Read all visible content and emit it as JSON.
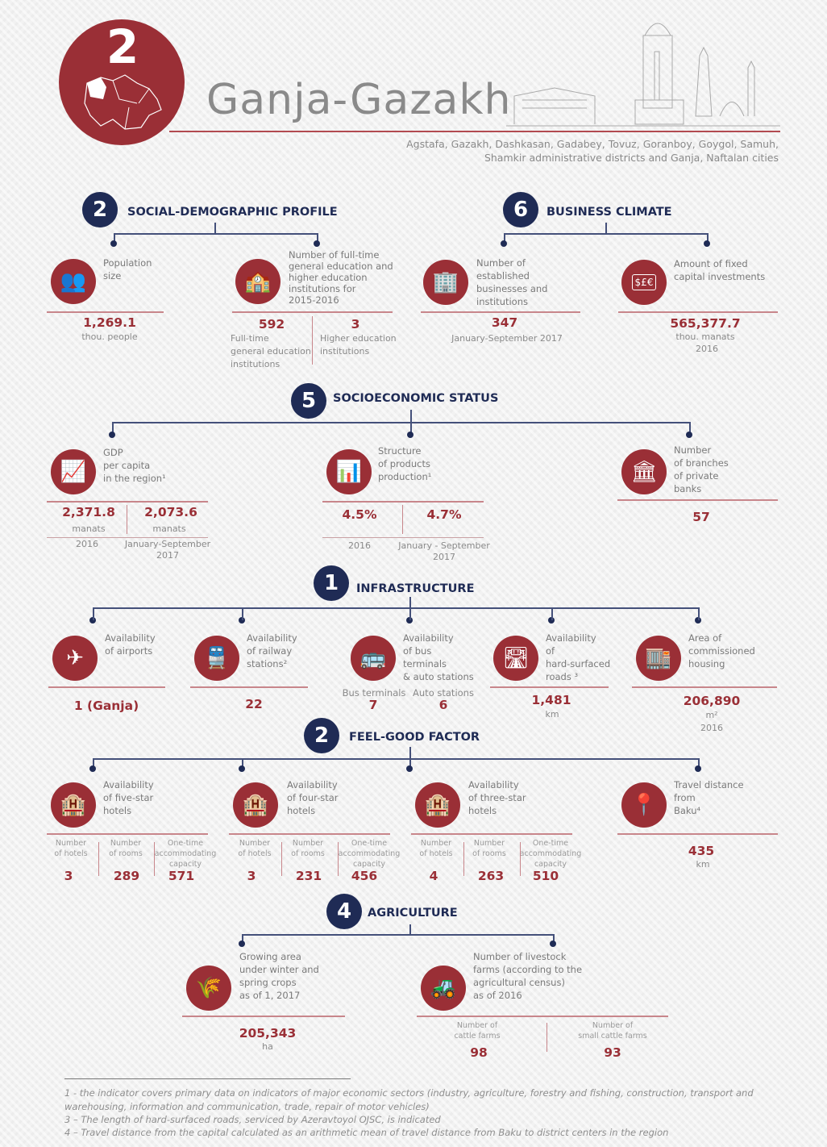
{
  "header": {
    "number": "2",
    "title": "Ganja-Gazakh",
    "subtitle_line1": "Agstafa, Gazakh, Dashkasan, Gadabey, Tovuz, Goranboy, Goygol, Samuh,",
    "subtitle_line2": "Shamkir administrative districts and Ganja, Naftalan cities"
  },
  "colors": {
    "accent": "#9a2f36",
    "navy": "#1f2b55"
  },
  "social": {
    "number": "2",
    "title": "SOCIAL-DEMOGRAPHIC PROFILE",
    "population": {
      "icon": "people-icon",
      "label": "Population\nsize",
      "value": "1,269.1",
      "unit": "thou. people"
    },
    "education": {
      "icon": "school-icon",
      "label": "Number of full-time\ngeneral education and\nhigher education\ninstitutions for\n2015-2016",
      "general_value": "592",
      "general_label": "Full-time\ngeneral education\ninstitutions",
      "higher_value": "3",
      "higher_label": "Higher education\ninstitutions"
    }
  },
  "business": {
    "number": "6",
    "title": "BUSINESS CLIMATE",
    "businesses": {
      "icon": "office-building-icon",
      "label": "Number of\nestablished\nbusinesses and\ninstitutions",
      "value": "347",
      "period": "January-September 2017"
    },
    "investments": {
      "icon": "money-case-icon",
      "icon_text": "$£€",
      "label": "Amount of fixed\ncapital investments",
      "value": "565,377.7",
      "unit": "thou. manats",
      "year": "2016"
    }
  },
  "socio": {
    "number": "5",
    "title": "SOCIOECONOMIC STATUS",
    "gdp": {
      "icon": "gdp-person-chart-icon",
      "label": "GDP\nper capita\nin the region¹",
      "value_2016": "2,371.8",
      "unit_2016": "manats",
      "period_2016": "2016",
      "value_2017": "2,073.6",
      "unit_2017": "manats",
      "period_2017": "January-September\n2017"
    },
    "structure": {
      "icon": "growth-chart-icon",
      "label": "Structure\nof products\nproduction¹",
      "value_2016": "4.5%",
      "period_2016": "2016",
      "value_2017": "4.7%",
      "period_2017": "January - September\n2017"
    },
    "banks": {
      "icon": "bank-icon",
      "label": "Number\nof branches\nof private\nbanks",
      "value": "57"
    }
  },
  "infra": {
    "number": "1",
    "title": "INFRASTRUCTURE",
    "airports": {
      "icon": "airplane-icon",
      "label": "Availability\nof airports",
      "value": "1 (Ganja)"
    },
    "railway": {
      "icon": "train-icon",
      "label": "Availability\nof railway\nstations²",
      "value": "22"
    },
    "bus": {
      "icon": "bus-icon",
      "label": "Availability\nof bus\nterminals\n& auto stations",
      "terminals_label": "Bus terminals",
      "terminals_value": "7",
      "stations_label": "Auto stations",
      "stations_value": "6"
    },
    "roads": {
      "icon": "road-icon",
      "label": "Availability\nof\nhard-surfaced\nroads ³",
      "value": "1,481",
      "unit": "km"
    },
    "housing": {
      "icon": "apartment-building-icon",
      "label": "Area of\ncommissioned\nhousing",
      "value": "206,890",
      "unit": "m²",
      "year": "2016"
    }
  },
  "feel": {
    "number": "2",
    "title": "FEEL-GOOD FACTOR",
    "col_hotels": "Number\nof hotels",
    "col_rooms": "Number\nof rooms",
    "col_capacity": "One-time\naccommodating\ncapacity",
    "hotels": [
      {
        "icon": "hotel-icon",
        "label": "Availability\nof five-star\nhotels",
        "hotels": "3",
        "rooms": "289",
        "capacity": "571"
      },
      {
        "icon": "hotel-icon",
        "label": "Availability\nof four-star\nhotels",
        "hotels": "3",
        "rooms": "231",
        "capacity": "456"
      },
      {
        "icon": "hotel-icon",
        "label": "Availability\nof three-star\nhotels",
        "hotels": "4",
        "rooms": "263",
        "capacity": "510"
      }
    ],
    "travel": {
      "icon": "route-pin-icon",
      "label": "Travel distance\nfrom\nBaku⁴",
      "value": "435",
      "unit": "km"
    }
  },
  "agri": {
    "number": "4",
    "title": "AGRICULTURE",
    "crops": {
      "icon": "wheat-field-icon",
      "label": "Growing area\nunder winter and\nspring crops\nas of 1, 2017",
      "value": "205,343",
      "unit": "ha"
    },
    "livestock": {
      "icon": "tractor-icon",
      "label": "Number of livestock\nfarms (according to the\nagricultural census)\nas of 2016",
      "cattle_label": "Number of\ncattle farms",
      "cattle_value": "98",
      "small_label": "Number of\nsmall cattle farms",
      "small_value": "93"
    }
  },
  "footnotes": [
    "1 - the indicator covers primary data on indicators of major economic sectors (industry, agriculture, forestry and fishing, construction, transport and warehousing, information and communication, trade, repair of  motor vehicles)",
    "3 – The length of hard-surfaced roads, serviced by Azeravtoyol OJSC, is indicated",
    "4 – Travel distance from the capital calculated as an arithmetic mean of travel distance from Baku to district centers in the region"
  ]
}
